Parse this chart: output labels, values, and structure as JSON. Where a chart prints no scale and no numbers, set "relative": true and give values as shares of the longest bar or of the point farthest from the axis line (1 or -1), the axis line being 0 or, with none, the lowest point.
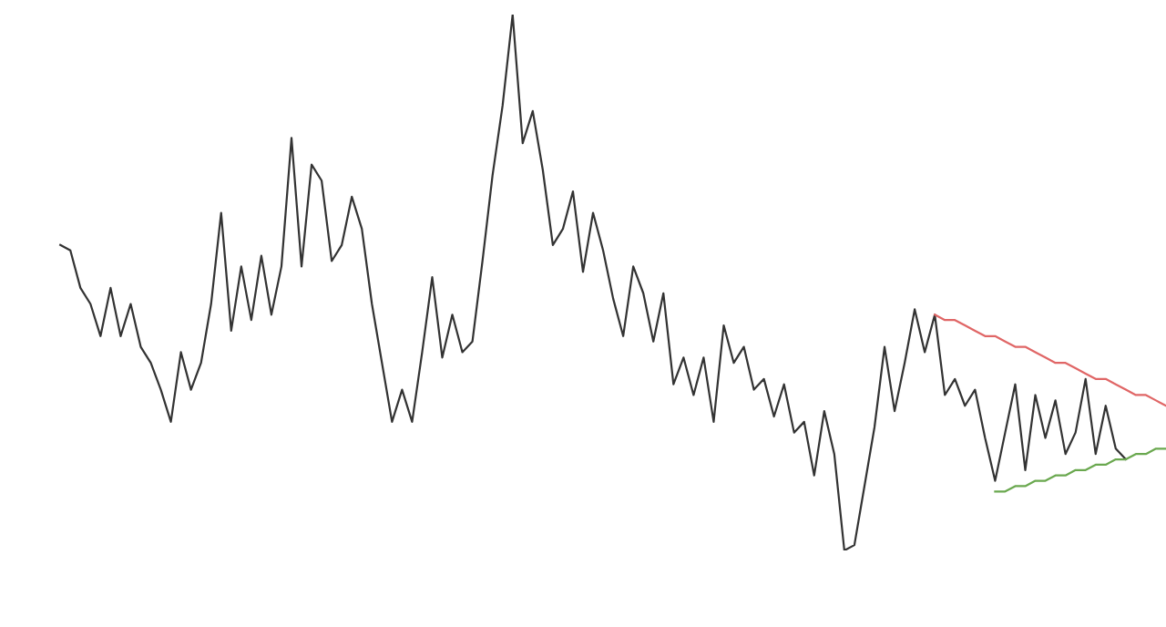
{
  "chart_data": {
    "type": "line",
    "relative": true,
    "grid": false,
    "categories": [
      null,
      null,
      null,
      null,
      null,
      null,
      null,
      null,
      null,
      null,
      null,
      null,
      null,
      null,
      null,
      null,
      null,
      null,
      null,
      null,
      null,
      null,
      null,
      null,
      null,
      null,
      null,
      null,
      null,
      null,
      null,
      null,
      null,
      null,
      null,
      null,
      null,
      null,
      null,
      null,
      null,
      null,
      null,
      null,
      null,
      null,
      null,
      null,
      null,
      null,
      null,
      null,
      null,
      null,
      null,
      null,
      null,
      null,
      null,
      null,
      null,
      null,
      null,
      null,
      null,
      null,
      null,
      null,
      null,
      null,
      null,
      null,
      null,
      null,
      null,
      null,
      null,
      null,
      null,
      null,
      null,
      null,
      null,
      null,
      null,
      null,
      null,
      null,
      null,
      null,
      null,
      null,
      null,
      null,
      null,
      null,
      null,
      null,
      null,
      null,
      null,
      null,
      null,
      null,
      null,
      null,
      null,
      null,
      null,
      null,
      null
    ],
    "series": [
      {
        "color": "#333333",
        "values": [
          0.57,
          0.56,
          0.49,
          0.46,
          0.4,
          0.49,
          0.4,
          0.46,
          0.38,
          0.35,
          0.3,
          0.24,
          0.37,
          0.3,
          0.35,
          0.46,
          0.63,
          0.41,
          0.53,
          0.43,
          0.55,
          0.44,
          0.53,
          0.77,
          0.53,
          0.72,
          0.69,
          0.54,
          0.57,
          0.66,
          0.6,
          0.46,
          0.35,
          0.24,
          0.3,
          0.24,
          0.37,
          0.51,
          0.36,
          0.44,
          0.37,
          0.39,
          0.54,
          0.7,
          0.83,
          1,
          0.76,
          0.82,
          0.71,
          0.57,
          0.6,
          0.67,
          0.52,
          0.63,
          0.56,
          0.47,
          0.4,
          0.53,
          0.48,
          0.39,
          0.48,
          0.31,
          0.36,
          0.29,
          0.36,
          0.24,
          0.42,
          0.35,
          0.38,
          0.3,
          0.32,
          0.25,
          0.31,
          0.22,
          0.24,
          0.14,
          0.26,
          0.18,
          0,
          0.01,
          0.12,
          0.23,
          0.38,
          0.26,
          0.35,
          0.45,
          0.37,
          0.44,
          0.29,
          0.32,
          0.27,
          0.3,
          0.21,
          0.13,
          0.22,
          0.31,
          0.15,
          0.29,
          0.21,
          0.28,
          0.18,
          0.22,
          0.32,
          0.18,
          0.27,
          0.19,
          0.17,
          null,
          null,
          null,
          null
        ]
      },
      {
        "type": "line",
        "color": "#e06666",
        "values": [
          null,
          null,
          null,
          null,
          null,
          null,
          null,
          null,
          null,
          null,
          null,
          null,
          null,
          null,
          null,
          null,
          null,
          null,
          null,
          null,
          null,
          null,
          null,
          null,
          null,
          null,
          null,
          null,
          null,
          null,
          null,
          null,
          null,
          null,
          null,
          null,
          null,
          null,
          null,
          null,
          null,
          null,
          null,
          null,
          null,
          null,
          null,
          null,
          null,
          null,
          null,
          null,
          null,
          null,
          null,
          null,
          null,
          null,
          null,
          null,
          null,
          null,
          null,
          null,
          null,
          null,
          null,
          null,
          null,
          null,
          null,
          null,
          null,
          null,
          null,
          null,
          null,
          null,
          null,
          null,
          null,
          null,
          null,
          null,
          null,
          null,
          null,
          0.44,
          0.43,
          0.43,
          0.42,
          0.41,
          0.4,
          0.4,
          0.39,
          0.38,
          0.38,
          0.37,
          0.36,
          0.35,
          0.35,
          0.34,
          0.33,
          0.32,
          0.32,
          0.31,
          0.3,
          0.29,
          0.29,
          0.28,
          0.27
        ]
      },
      {
        "type": "line",
        "color": "#6aa84f",
        "values": [
          null,
          null,
          null,
          null,
          null,
          null,
          null,
          null,
          null,
          null,
          null,
          null,
          null,
          null,
          null,
          null,
          null,
          null,
          null,
          null,
          null,
          null,
          null,
          null,
          null,
          null,
          null,
          null,
          null,
          null,
          null,
          null,
          null,
          null,
          null,
          null,
          null,
          null,
          null,
          null,
          null,
          null,
          null,
          null,
          null,
          null,
          null,
          null,
          null,
          null,
          null,
          null,
          null,
          null,
          null,
          null,
          null,
          null,
          null,
          null,
          null,
          null,
          null,
          null,
          null,
          null,
          null,
          null,
          null,
          null,
          null,
          null,
          null,
          null,
          null,
          null,
          null,
          null,
          null,
          null,
          null,
          null,
          null,
          null,
          null,
          null,
          null,
          null,
          null,
          null,
          null,
          null,
          null,
          0.11,
          0.11,
          0.12,
          0.12,
          0.13,
          0.13,
          0.14,
          0.14,
          0.15,
          0.15,
          0.16,
          0.16,
          0.17,
          0.17,
          0.18,
          0.18,
          0.19,
          0.19
        ]
      }
    ]
  }
}
